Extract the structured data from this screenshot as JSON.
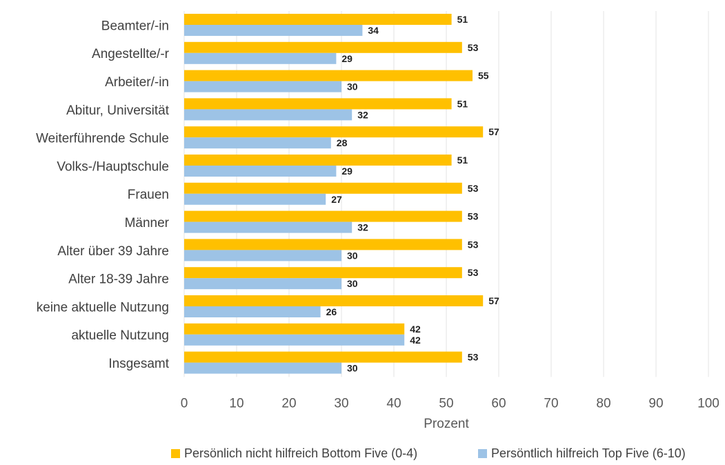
{
  "chart_data": {
    "type": "bar",
    "orientation": "horizontal",
    "categories": [
      "Beamter/-in",
      "Angestellte/-r",
      "Arbeiter/-in",
      "Abitur, Universität",
      "Weiterführende Schule",
      "Volks-/Hauptschule",
      "Frauen",
      "Männer",
      "Alter über 39 Jahre",
      "Alter 18-39 Jahre",
      "keine aktuelle Nutzung",
      "aktuelle Nutzung",
      "Insgesamt"
    ],
    "series": [
      {
        "name": "Persönlich nicht hilfreich Bottom Five (0-4)",
        "color": "#FFC000",
        "values": [
          51,
          53,
          55,
          51,
          57,
          51,
          53,
          53,
          53,
          53,
          57,
          42,
          53
        ]
      },
      {
        "name": "Persöntlich hilfreich Top Five (6-10)",
        "color": "#9DC3E6",
        "values": [
          34,
          29,
          30,
          32,
          28,
          29,
          27,
          32,
          30,
          30,
          26,
          42,
          30
        ]
      }
    ],
    "title": "",
    "xlabel": "Prozent",
    "ylabel": "",
    "xlim": [
      0,
      100
    ],
    "xticks": [
      "0",
      "10",
      "20",
      "30",
      "40",
      "50",
      "60",
      "70",
      "80",
      "90",
      "100"
    ],
    "grid": true,
    "legend": "bottom",
    "data_labels": true
  }
}
